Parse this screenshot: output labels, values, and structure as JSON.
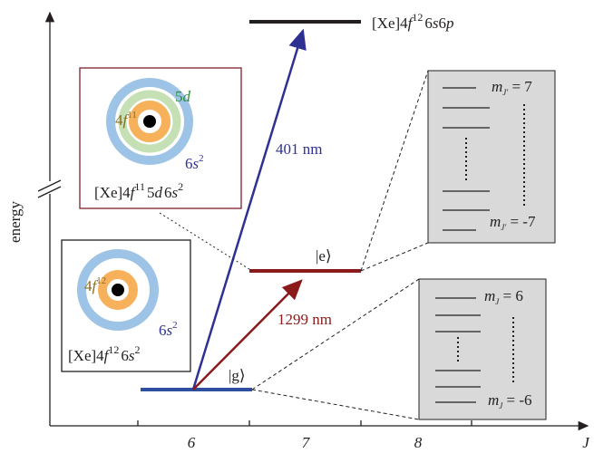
{
  "axes": {
    "y_label": "energy",
    "x_label": "J",
    "x_ticks": [
      "6",
      "7",
      "8"
    ]
  },
  "top_level": {
    "parts": [
      "[Xe]4",
      "f",
      "12",
      "6",
      "s",
      "6",
      "p"
    ]
  },
  "excited_config": {
    "parts": [
      "[Xe]4",
      "f",
      "11",
      "5",
      "d",
      "6",
      "s",
      "2"
    ],
    "orbitals": {
      "f": [
        "4",
        "f",
        "11"
      ],
      "d": [
        "5",
        "d"
      ],
      "s": [
        "6",
        "s",
        "2"
      ]
    }
  },
  "ground_config": {
    "parts": [
      "[Xe]4",
      "f",
      "12",
      "6",
      "s",
      "2"
    ],
    "orbitals": {
      "f": [
        "4",
        "f",
        "12"
      ],
      "s": [
        "6",
        "s",
        "2"
      ]
    }
  },
  "transitions": {
    "blue": "401 nm",
    "red": "1299 nm"
  },
  "states": {
    "e": "|e⟩",
    "g": "|g⟩"
  },
  "zoom_e": {
    "top": [
      "m",
      "J'",
      " = 7"
    ],
    "bottom": [
      "m",
      "J'",
      " = -7"
    ]
  },
  "zoom_g": {
    "top": [
      "m",
      "J",
      " = 6"
    ],
    "bottom": [
      "m",
      "J",
      " = -6"
    ]
  }
}
